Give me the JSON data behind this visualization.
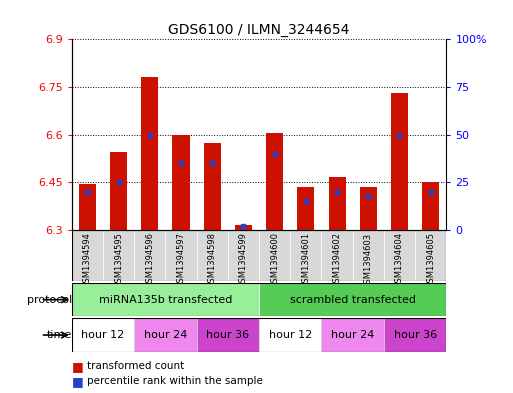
{
  "title": "GDS6100 / ILMN_3244654",
  "samples": [
    "GSM1394594",
    "GSM1394595",
    "GSM1394596",
    "GSM1394597",
    "GSM1394598",
    "GSM1394599",
    "GSM1394600",
    "GSM1394601",
    "GSM1394602",
    "GSM1394603",
    "GSM1394604",
    "GSM1394605"
  ],
  "red_values": [
    6.445,
    6.545,
    6.78,
    6.6,
    6.575,
    6.315,
    6.605,
    6.435,
    6.465,
    6.435,
    6.73,
    6.45
  ],
  "blue_pct": [
    20,
    25,
    50,
    35,
    35,
    2,
    40,
    15,
    20,
    18,
    50,
    20
  ],
  "y_min": 6.3,
  "y_max": 6.9,
  "y_ticks_left": [
    6.3,
    6.45,
    6.6,
    6.75,
    6.9
  ],
  "y_ticks_right": [
    0,
    25,
    50,
    75,
    100
  ],
  "bar_color": "#cc1100",
  "blue_color": "#2244cc",
  "bar_width": 0.55,
  "protocol_labels": [
    "miRNA135b transfected",
    "scrambled transfected"
  ],
  "protocol_split": 6,
  "protocol_color1": "#99ee99",
  "protocol_color2": "#55cc55",
  "time_labels": [
    "hour 12",
    "hour 24",
    "hour 36",
    "hour 12",
    "hour 24",
    "hour 36"
  ],
  "time_sample_counts": [
    2,
    2,
    2,
    2,
    2,
    2
  ],
  "time_color_white": "#ffffff",
  "time_color_pink1": "#ee88ee",
  "time_color_pink2": "#cc44cc",
  "sample_bg": "#d8d8d8",
  "grid_color": "#000000"
}
